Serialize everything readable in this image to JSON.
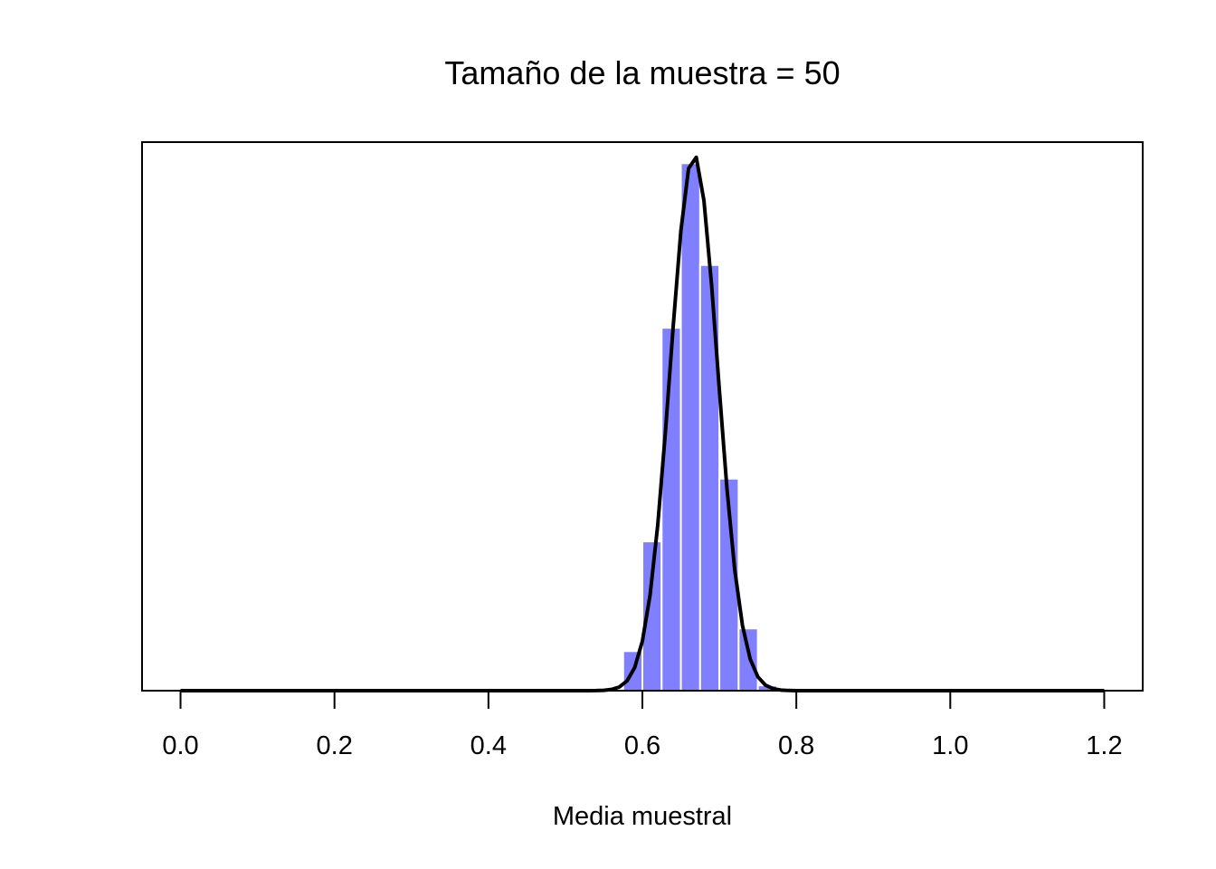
{
  "chart_data": {
    "type": "bar",
    "title": "Tamaño de la muestra = 50",
    "xlabel": "Media muestral",
    "ylabel": "",
    "xlim": [
      -0.05,
      1.25
    ],
    "ylim": [
      0,
      1.04
    ],
    "x_ticks": [
      0.0,
      0.2,
      0.4,
      0.6,
      0.8,
      1.0,
      1.2
    ],
    "x_tick_labels": [
      "0.0",
      "0.2",
      "0.4",
      "0.6",
      "0.8",
      "1.0",
      "1.2"
    ],
    "y_axis_shown": false,
    "grid": false,
    "legend": "none",
    "bar_color": "#8080ff",
    "bar_edge_color": "#ffffff",
    "curve_color": "#000000",
    "histogram": {
      "bin_width": 0.025,
      "bins": [
        {
          "start": 0.55,
          "value": 0.003
        },
        {
          "start": 0.575,
          "value": 0.075
        },
        {
          "start": 0.6,
          "value": 0.283
        },
        {
          "start": 0.625,
          "value": 0.688
        },
        {
          "start": 0.65,
          "value": 1.0
        },
        {
          "start": 0.675,
          "value": 0.807
        },
        {
          "start": 0.7,
          "value": 0.402
        },
        {
          "start": 0.725,
          "value": 0.118
        },
        {
          "start": 0.75,
          "value": 0.01
        }
      ]
    },
    "curve": {
      "mean": 0.667,
      "sd": 0.0307,
      "peak": 1.016,
      "x_range": [
        0.0,
        1.2
      ]
    }
  }
}
